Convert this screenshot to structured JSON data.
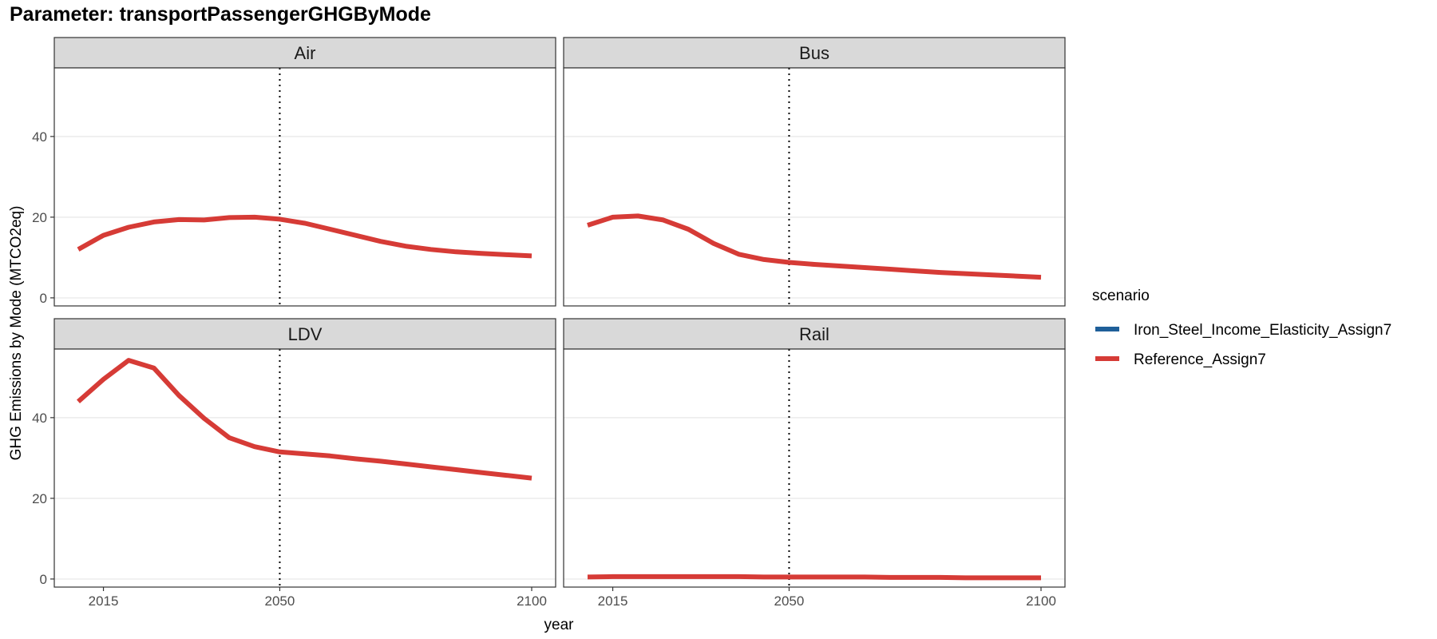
{
  "title": "Parameter: transportPassengerGHGByMode",
  "chart_data": {
    "type": "line",
    "title": "Parameter: transportPassengerGHGByMode",
    "xlabel": "year",
    "ylabel": "GHG Emissions by Mode (MTCO2eq)",
    "xlim": [
      2010,
      2100
    ],
    "ylim": [
      -2,
      57
    ],
    "x_ticks": [
      2015,
      2050,
      2100
    ],
    "y_ticks": [
      0,
      20,
      40
    ],
    "reference_line": {
      "x": 2050,
      "style": "dotted"
    },
    "grid": true,
    "legend": {
      "title": "scenario",
      "position": "right",
      "entries": [
        {
          "name": "Iron_Steel_Income_Elasticity_Assign7",
          "color": "#1f5f99"
        },
        {
          "name": "Reference_Assign7",
          "color": "#d63b36"
        }
      ]
    },
    "x": [
      2010,
      2015,
      2020,
      2025,
      2030,
      2035,
      2040,
      2045,
      2050,
      2055,
      2060,
      2065,
      2070,
      2075,
      2080,
      2085,
      2090,
      2095,
      2100
    ],
    "panels": [
      {
        "name": "Air",
        "series": [
          {
            "name": "Reference_Assign7",
            "values": [
              12.0,
              15.5,
              17.5,
              18.8,
              19.4,
              19.3,
              19.9,
              20.0,
              19.5,
              18.5,
              17.0,
              15.5,
              14.0,
              12.8,
              12.0,
              11.4,
              11.0,
              10.7,
              10.4
            ]
          }
        ]
      },
      {
        "name": "Bus",
        "series": [
          {
            "name": "Reference_Assign7",
            "values": [
              18.0,
              20.0,
              20.3,
              19.3,
              17.0,
              13.5,
              10.8,
              9.5,
              8.8,
              8.3,
              7.9,
              7.5,
              7.1,
              6.7,
              6.3,
              6.0,
              5.7,
              5.4,
              5.1
            ]
          }
        ]
      },
      {
        "name": "LDV",
        "series": [
          {
            "name": "Reference_Assign7",
            "values": [
              44.0,
              49.5,
              54.2,
              52.3,
              45.5,
              39.8,
              35.0,
              32.8,
              31.5,
              31.0,
              30.5,
              29.8,
              29.2,
              28.5,
              27.8,
              27.1,
              26.4,
              25.7,
              25.0
            ]
          }
        ]
      },
      {
        "name": "Rail",
        "series": [
          {
            "name": "Reference_Assign7",
            "values": [
              0.5,
              0.6,
              0.6,
              0.6,
              0.6,
              0.6,
              0.6,
              0.5,
              0.5,
              0.5,
              0.5,
              0.5,
              0.4,
              0.4,
              0.4,
              0.3,
              0.3,
              0.3,
              0.3
            ]
          }
        ]
      }
    ]
  }
}
